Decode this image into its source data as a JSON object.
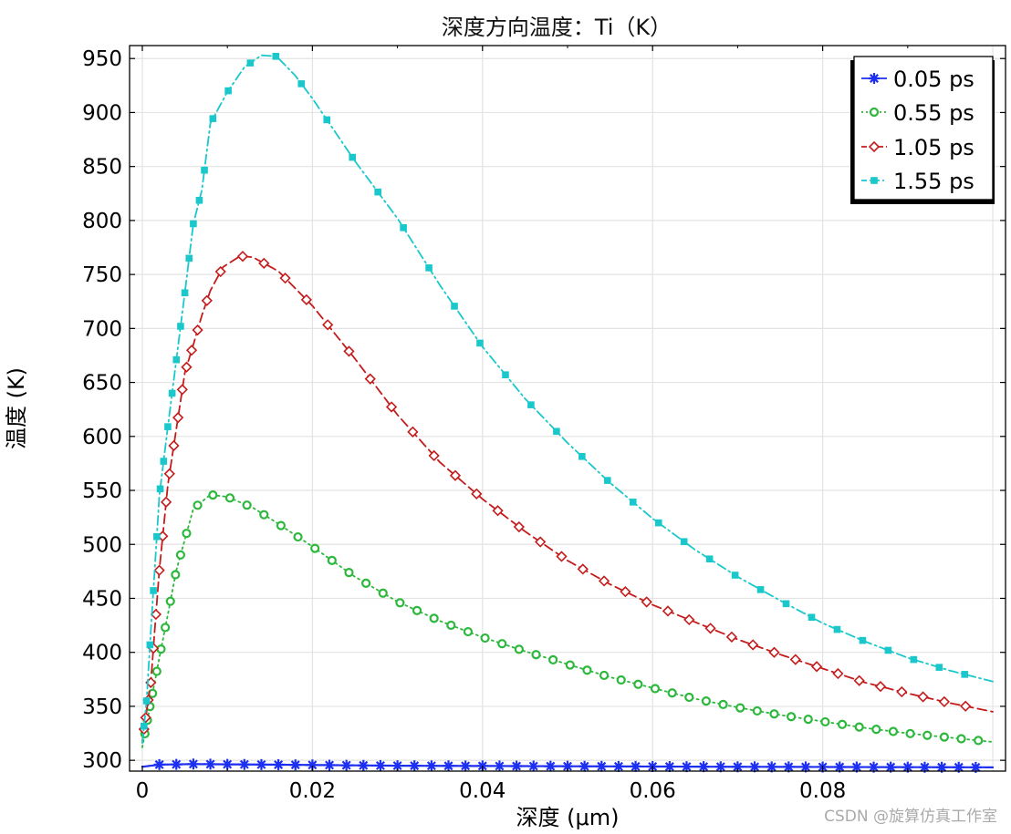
{
  "chart_data": {
    "type": "line",
    "title": "深度方向温度：Ti（K）",
    "xlabel": "深度 (μm)",
    "ylabel": "温度 (K)",
    "xlim": [
      -0.0015,
      0.1015
    ],
    "ylim": [
      290,
      962
    ],
    "x_ticks": [
      0,
      0.02,
      0.04,
      0.06,
      0.08
    ],
    "x_tick_labels": [
      "0",
      "0.02",
      "0.04",
      "0.06",
      "0.08"
    ],
    "y_ticks": [
      300,
      350,
      400,
      450,
      500,
      550,
      600,
      650,
      700,
      750,
      800,
      850,
      900,
      950
    ],
    "y_tick_labels": [
      "300",
      "350",
      "400",
      "450",
      "500",
      "550",
      "600",
      "650",
      "700",
      "750",
      "800",
      "850",
      "900",
      "950"
    ],
    "grid": true,
    "legend_position": "top-right",
    "series": [
      {
        "name": "0.05 ps",
        "color": "#1d2ff0",
        "line_style": "solid",
        "marker": "star",
        "curve": [
          [
            0,
            294
          ],
          [
            0.002,
            296
          ],
          [
            0.006,
            296.5
          ],
          [
            0.015,
            296
          ],
          [
            0.03,
            295
          ],
          [
            0.05,
            294.5
          ],
          [
            0.07,
            294
          ],
          [
            0.1,
            293.5
          ]
        ],
        "markers_x": [
          0.002,
          0.004,
          0.006,
          0.008,
          0.01,
          0.012,
          0.014,
          0.016,
          0.018,
          0.02,
          0.022,
          0.024,
          0.026,
          0.028,
          0.03,
          0.032,
          0.034,
          0.036,
          0.038,
          0.04,
          0.042,
          0.044,
          0.046,
          0.048,
          0.05,
          0.052,
          0.054,
          0.056,
          0.058,
          0.06,
          0.062,
          0.064,
          0.066,
          0.068,
          0.07,
          0.072,
          0.074,
          0.076,
          0.078,
          0.08,
          0.082,
          0.084,
          0.086,
          0.088,
          0.09,
          0.092,
          0.094,
          0.096,
          0.098
        ]
      },
      {
        "name": "0.55 ps",
        "color": "#2db83d",
        "line_style": "dotted",
        "marker": "circle",
        "curve": [
          [
            0,
            312
          ],
          [
            0.0005,
            333
          ],
          [
            0.001,
            354
          ],
          [
            0.0015,
            374
          ],
          [
            0.002,
            395
          ],
          [
            0.003,
            435
          ],
          [
            0.004,
            476
          ],
          [
            0.006,
            533
          ],
          [
            0.008,
            546
          ],
          [
            0.01,
            544
          ],
          [
            0.013,
            534
          ],
          [
            0.016,
            519
          ],
          [
            0.02,
            498
          ],
          [
            0.025,
            470
          ],
          [
            0.03,
            447
          ],
          [
            0.035,
            429
          ],
          [
            0.04,
            414
          ],
          [
            0.045,
            401
          ],
          [
            0.05,
            389
          ],
          [
            0.055,
            377
          ],
          [
            0.06,
            367
          ],
          [
            0.065,
            357
          ],
          [
            0.07,
            349
          ],
          [
            0.075,
            342
          ],
          [
            0.08,
            336
          ],
          [
            0.085,
            330
          ],
          [
            0.09,
            325
          ],
          [
            0.095,
            321
          ],
          [
            0.1,
            317
          ]
        ],
        "markers_x": [
          0.0003,
          0.0006,
          0.0009,
          0.0012,
          0.0017,
          0.0022,
          0.0027,
          0.0033,
          0.0039,
          0.0045,
          0.0052,
          0.0065,
          0.0083,
          0.0103,
          0.0123,
          0.0143,
          0.0163,
          0.0183,
          0.0203,
          0.0223,
          0.0243,
          0.0263,
          0.0283,
          0.0303,
          0.0323,
          0.0343,
          0.0363,
          0.0383,
          0.0403,
          0.0423,
          0.0443,
          0.0463,
          0.0483,
          0.0503,
          0.0523,
          0.0543,
          0.0563,
          0.0583,
          0.0603,
          0.0623,
          0.0643,
          0.0663,
          0.0683,
          0.0703,
          0.0723,
          0.0743,
          0.0763,
          0.0783,
          0.0803,
          0.0823,
          0.0843,
          0.0863,
          0.0883,
          0.0903,
          0.0923,
          0.0943,
          0.0963,
          0.0983
        ]
      },
      {
        "name": "1.05 ps",
        "color": "#c41c1c",
        "line_style": "dashed",
        "marker": "diamond",
        "curve": [
          [
            0,
            318
          ],
          [
            0.0005,
            345
          ],
          [
            0.001,
            372
          ],
          [
            0.0015,
            425
          ],
          [
            0.002,
            476
          ],
          [
            0.003,
            555
          ],
          [
            0.004,
            607
          ],
          [
            0.005,
            659
          ],
          [
            0.006,
            685
          ],
          [
            0.007,
            712
          ],
          [
            0.008,
            735
          ],
          [
            0.0095,
            757
          ],
          [
            0.0115,
            767
          ],
          [
            0.013,
            766
          ],
          [
            0.016,
            753
          ],
          [
            0.02,
            721
          ],
          [
            0.025,
            672
          ],
          [
            0.03,
            620
          ],
          [
            0.035,
            576
          ],
          [
            0.04,
            542
          ],
          [
            0.045,
            512
          ],
          [
            0.05,
            485
          ],
          [
            0.055,
            463
          ],
          [
            0.06,
            444
          ],
          [
            0.065,
            428
          ],
          [
            0.07,
            412
          ],
          [
            0.075,
            398
          ],
          [
            0.08,
            385
          ],
          [
            0.085,
            372
          ],
          [
            0.09,
            362
          ],
          [
            0.095,
            353
          ],
          [
            0.1,
            345
          ]
        ],
        "markers_x": [
          0.0002,
          0.0004,
          0.0007,
          0.001,
          0.0013,
          0.0016,
          0.002,
          0.0024,
          0.0028,
          0.0032,
          0.0037,
          0.0042,
          0.0047,
          0.0052,
          0.0058,
          0.0065,
          0.0076,
          0.0092,
          0.0118,
          0.0143,
          0.0168,
          0.0193,
          0.0218,
          0.0243,
          0.0268,
          0.0293,
          0.0318,
          0.0343,
          0.0368,
          0.0393,
          0.0418,
          0.0443,
          0.0468,
          0.0493,
          0.0518,
          0.0543,
          0.0568,
          0.0593,
          0.0618,
          0.0643,
          0.0668,
          0.0693,
          0.0718,
          0.0743,
          0.0768,
          0.0793,
          0.0818,
          0.0843,
          0.0868,
          0.0893,
          0.0918,
          0.0943,
          0.0968
        ]
      },
      {
        "name": "1.55 ps",
        "color": "#1ac8cc",
        "line_style": "dash-dot",
        "marker": "square",
        "curve": [
          [
            0,
            316
          ],
          [
            0.0005,
            355
          ],
          [
            0.001,
            420
          ],
          [
            0.0015,
            482
          ],
          [
            0.002,
            545
          ],
          [
            0.003,
            609
          ],
          [
            0.004,
            671
          ],
          [
            0.005,
            733
          ],
          [
            0.006,
            797
          ],
          [
            0.007,
            828
          ],
          [
            0.008,
            890
          ],
          [
            0.01,
            919
          ],
          [
            0.012,
            942
          ],
          [
            0.014,
            953
          ],
          [
            0.0158,
            952
          ],
          [
            0.018,
            934
          ],
          [
            0.02,
            913
          ],
          [
            0.025,
            855
          ],
          [
            0.03,
            802
          ],
          [
            0.035,
            740
          ],
          [
            0.04,
            683
          ],
          [
            0.045,
            635
          ],
          [
            0.05,
            594
          ],
          [
            0.055,
            557
          ],
          [
            0.06,
            524
          ],
          [
            0.065,
            495
          ],
          [
            0.07,
            470
          ],
          [
            0.075,
            448
          ],
          [
            0.08,
            427
          ],
          [
            0.085,
            410
          ],
          [
            0.09,
            395
          ],
          [
            0.095,
            383
          ],
          [
            0.1,
            373
          ]
        ],
        "markers_x": [
          0.0002,
          0.0005,
          0.0009,
          0.0013,
          0.0017,
          0.0021,
          0.0025,
          0.003,
          0.0035,
          0.004,
          0.0045,
          0.005,
          0.0055,
          0.006,
          0.0067,
          0.0073,
          0.0083,
          0.0101,
          0.0127,
          0.0157,
          0.0187,
          0.0217,
          0.0247,
          0.0277,
          0.0307,
          0.0337,
          0.0367,
          0.0397,
          0.0427,
          0.0457,
          0.0487,
          0.0517,
          0.0547,
          0.0577,
          0.0607,
          0.0637,
          0.0667,
          0.0697,
          0.0727,
          0.0757,
          0.0787,
          0.0817,
          0.0847,
          0.0877,
          0.0907,
          0.0937,
          0.0967
        ]
      }
    ]
  },
  "watermark": "CSDN @旋算仿真工作室"
}
